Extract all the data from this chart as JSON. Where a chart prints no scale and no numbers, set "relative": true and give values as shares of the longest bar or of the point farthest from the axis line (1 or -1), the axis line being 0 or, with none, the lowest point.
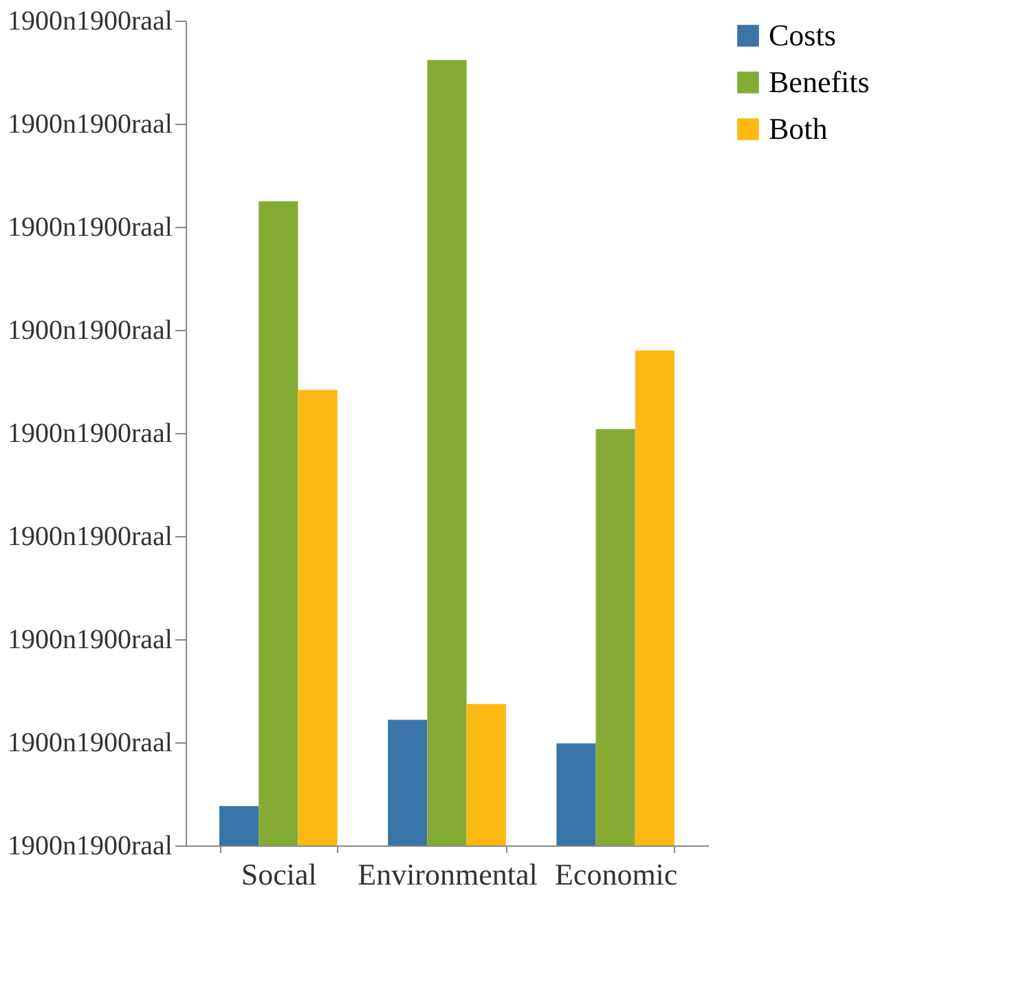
{
  "chart_data": {
    "type": "bar",
    "categories": [
      "Social",
      "Environmental",
      "Economic"
    ],
    "series": [
      {
        "name": "Costs",
        "color": "#3a75a8",
        "values": [
          0.05,
          0.16,
          0.13
        ]
      },
      {
        "name": "Benefits",
        "color": "#84ac35",
        "values": [
          0.82,
          1,
          0.53
        ]
      },
      {
        "name": "Both",
        "color": "#fdb813",
        "values": [
          0.58,
          0.18,
          0.63
        ]
      }
    ],
    "relative": true,
    "annotations": [
      "1900n1900raal",
      "1900n1900raal",
      "1900n1900raal",
      "1900n1900raal",
      "1900n1900raal",
      "1900n1900raal",
      "1900n1900raal",
      "1900n1900raal",
      "1900n1900raal"
    ],
    "grid": false,
    "legend": "right"
  }
}
